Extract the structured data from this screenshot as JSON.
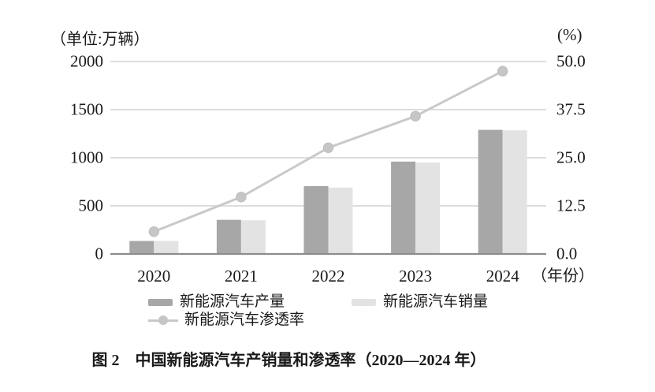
{
  "figure": {
    "caption": "图 2　中国新能源汽车产销量和渗透率（2020—2024 年）"
  },
  "axes": {
    "left_unit_label": "（单位:万辆）",
    "right_unit_label": "(%)",
    "x_axis_suffix": "（年份）",
    "left_tick_labels": [
      "2000",
      "1500",
      "1000",
      "500",
      "0"
    ],
    "right_tick_labels": [
      "50.0",
      "37.5",
      "25.0",
      "12.5",
      "0.0"
    ]
  },
  "legend": {
    "production": "新能源汽车产量",
    "sales": "新能源汽车销量",
    "penetration": "新能源汽车渗透率"
  },
  "colors": {
    "production_bar": "#a7a7a7",
    "sales_bar": "#e3e3e3",
    "penetration_line": "#c9c9c9",
    "penetration_dot": "#c6c6c6",
    "penetration_dot_rim": "#bdbdbd",
    "gridline": "#d2d2d2",
    "axis_line": "#8d8d8d",
    "text": "#1a1a1a"
  },
  "chart_data": {
    "type": "bar",
    "subtype": "grouped-bars-with-line",
    "title": "图 2 中国新能源汽车产销量和渗透率（2020—2024 年）",
    "categories": [
      "2020",
      "2021",
      "2022",
      "2023",
      "2024"
    ],
    "series": [
      {
        "name": "新能源汽车产量",
        "type": "bar",
        "axis": "left",
        "values": [
          135,
          355,
          705,
          960,
          1290
        ]
      },
      {
        "name": "新能源汽车销量",
        "type": "bar",
        "axis": "left",
        "values": [
          135,
          350,
          690,
          950,
          1285
        ]
      },
      {
        "name": "新能源汽车渗透率",
        "type": "line",
        "axis": "right",
        "values": [
          5.8,
          14.8,
          27.6,
          35.8,
          47.5
        ]
      }
    ],
    "left_axis": {
      "unit": "万辆",
      "ticks": [
        0,
        500,
        1000,
        1500,
        2000
      ],
      "range": [
        0,
        2000
      ]
    },
    "right_axis": {
      "unit": "%",
      "ticks": [
        0.0,
        12.5,
        25.0,
        37.5,
        50.0
      ],
      "range": [
        0,
        50
      ]
    },
    "xlabel": "年份",
    "grid": true,
    "legend_position": "bottom"
  }
}
